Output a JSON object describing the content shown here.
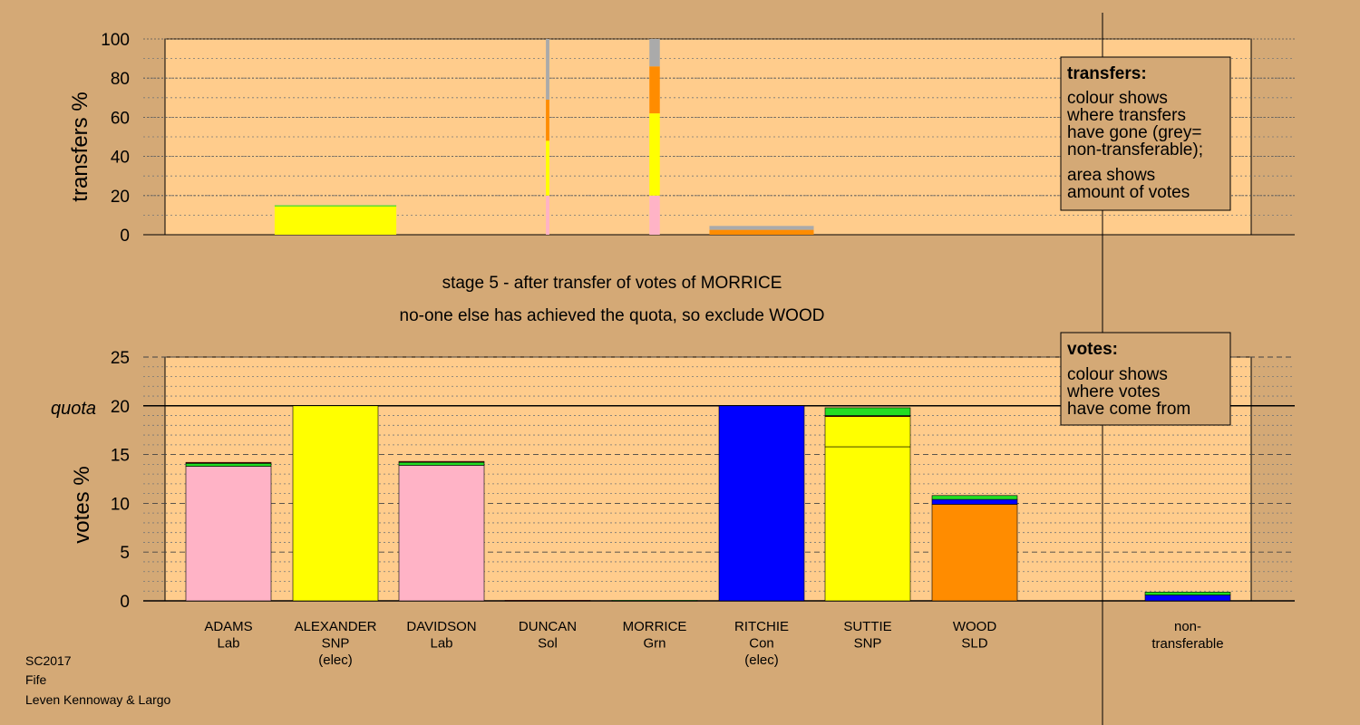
{
  "colors": {
    "background": "#d4a976",
    "plot_bg": "#ffcc8c",
    "Lab": "#ffb3c6",
    "SNP": "#ffff00",
    "Con": "#0000ff",
    "SLD": "#ff8c00",
    "Grn": "#22dd22",
    "Sol": "#8b0000",
    "nontransferable": "#aaaaaa"
  },
  "title_lines": [
    "stage 5 - after transfer of votes of MORRICE",
    "no-one else has achieved the quota, so exclude WOOD"
  ],
  "footer_lines": [
    "SC2017",
    "Fife",
    "Leven Kennoway & Largo"
  ],
  "transfers_box": {
    "heading": "transfers:",
    "lines_a": [
      "colour shows",
      "where transfers",
      "have gone (grey=",
      "non-transferable);"
    ],
    "lines_b": [
      "area shows",
      "amount of votes"
    ]
  },
  "votes_box": {
    "heading": "votes:",
    "lines": [
      "colour shows",
      "where votes",
      "have come from"
    ]
  },
  "candidates": [
    {
      "name": "ADAMS",
      "party": "Lab",
      "extra": ""
    },
    {
      "name": "ALEXANDER",
      "party": "SNP",
      "extra": "(elec)"
    },
    {
      "name": "DAVIDSON",
      "party": "Lab",
      "extra": ""
    },
    {
      "name": "DUNCAN",
      "party": "Sol",
      "extra": ""
    },
    {
      "name": "MORRICE",
      "party": "Grn",
      "extra": ""
    },
    {
      "name": "RITCHIE",
      "party": "Con",
      "extra": "(elec)"
    },
    {
      "name": "SUTTIE",
      "party": "SNP",
      "extra": ""
    },
    {
      "name": "WOOD",
      "party": "SLD",
      "extra": ""
    }
  ],
  "nontransferable_label": [
    "non-",
    "transferable"
  ],
  "chart_data": [
    {
      "type": "bar",
      "ylabel": "transfers %",
      "ylim": [
        0,
        100
      ],
      "yticks": [
        0,
        20,
        40,
        60,
        80,
        100
      ],
      "grid": "dotted",
      "legend_placement": "top-right",
      "bars": [
        {
          "candidate": "ALEXANDER",
          "width_share": 0.14,
          "segments": [
            {
              "party": "SNP",
              "value": 14.5
            },
            {
              "party": "Grn",
              "value": 0.5
            }
          ]
        },
        {
          "candidate": "DUNCAN",
          "width_share": 0.004,
          "segments": [
            {
              "party": "Lab",
              "value": 20
            },
            {
              "party": "SNP",
              "value": 28
            },
            {
              "party": "SLD",
              "value": 21
            },
            {
              "party": "nontransferable",
              "value": 31
            }
          ]
        },
        {
          "candidate": "MORRICE",
          "width_share": 0.012,
          "segments": [
            {
              "party": "Lab",
              "value": 20
            },
            {
              "party": "SNP",
              "value": 42
            },
            {
              "party": "SLD",
              "value": 24
            },
            {
              "party": "nontransferable",
              "value": 14
            }
          ]
        },
        {
          "candidate": "RITCHIE",
          "width_share": 0.12,
          "segments": [
            {
              "party": "SLD",
              "value": 2.5
            },
            {
              "party": "nontransferable",
              "value": 2
            }
          ]
        }
      ]
    },
    {
      "type": "bar",
      "ylabel": "votes %",
      "ylim": [
        0,
        25
      ],
      "yticks": [
        0,
        5,
        10,
        15,
        20,
        25
      ],
      "quota": 20,
      "quota_label": "quota",
      "grid": "dotted",
      "legend_placement": "top-right",
      "bars": [
        {
          "candidate": "ADAMS",
          "segments": [
            {
              "party": "Lab",
              "value": 13.8
            },
            {
              "party": "Grn",
              "value": 0.3
            },
            {
              "party": "Sol",
              "value": 0.1
            }
          ]
        },
        {
          "candidate": "ALEXANDER",
          "segments": [
            {
              "party": "SNP",
              "value": 20
            }
          ]
        },
        {
          "candidate": "DAVIDSON",
          "segments": [
            {
              "party": "Lab",
              "value": 13.9
            },
            {
              "party": "Grn",
              "value": 0.3
            },
            {
              "party": "Sol",
              "value": 0.1
            }
          ]
        },
        {
          "candidate": "DUNCAN",
          "segments": [
            {
              "party": "Sol",
              "value": 0.05
            }
          ]
        },
        {
          "candidate": "MORRICE",
          "segments": [
            {
              "party": "Grn",
              "value": 0.05
            }
          ]
        },
        {
          "candidate": "RITCHIE",
          "segments": [
            {
              "party": "Con",
              "value": 20
            }
          ]
        },
        {
          "candidate": "SUTTIE",
          "segments": [
            {
              "party": "SNP",
              "value": 15.8
            },
            {
              "party": "SNP",
              "value": 3.1
            },
            {
              "party": "Sol",
              "value": 0.1
            },
            {
              "party": "Grn",
              "value": 0.8
            }
          ]
        },
        {
          "candidate": "WOOD",
          "segments": [
            {
              "party": "SLD",
              "value": 9.9
            },
            {
              "party": "Con",
              "value": 0.5
            },
            {
              "party": "Grn",
              "value": 0.4
            }
          ]
        },
        {
          "candidate": "non-transferable",
          "segments": [
            {
              "party": "Con",
              "value": 0.6
            },
            {
              "party": "Grn",
              "value": 0.3
            }
          ]
        }
      ]
    }
  ]
}
